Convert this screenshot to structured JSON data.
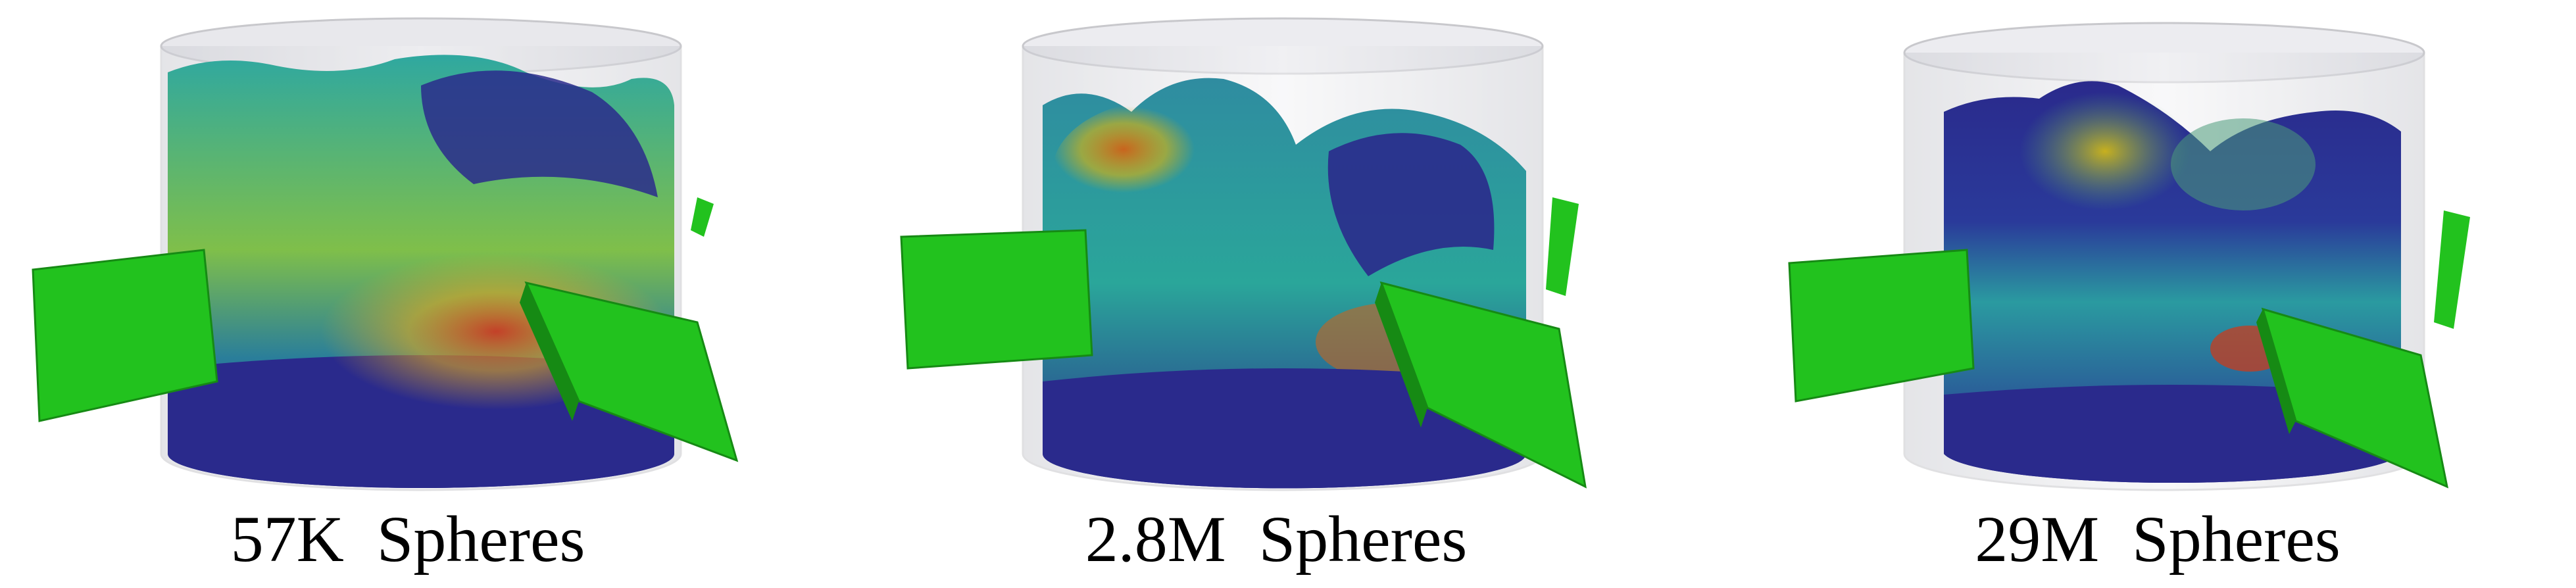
{
  "panels": [
    {
      "caption": "57K  Spheres"
    },
    {
      "caption": "2.8M  Spheres"
    },
    {
      "caption": "29M  Spheres"
    }
  ],
  "colors": {
    "paddle": "#22c21e",
    "paddle_dark": "#168a14",
    "particles_low": "#2a2a8c",
    "particles_mid": "#2aa6a0",
    "particles_high": "#d2a81e",
    "particles_peak": "#c8321e",
    "container": "#dcdce0"
  }
}
